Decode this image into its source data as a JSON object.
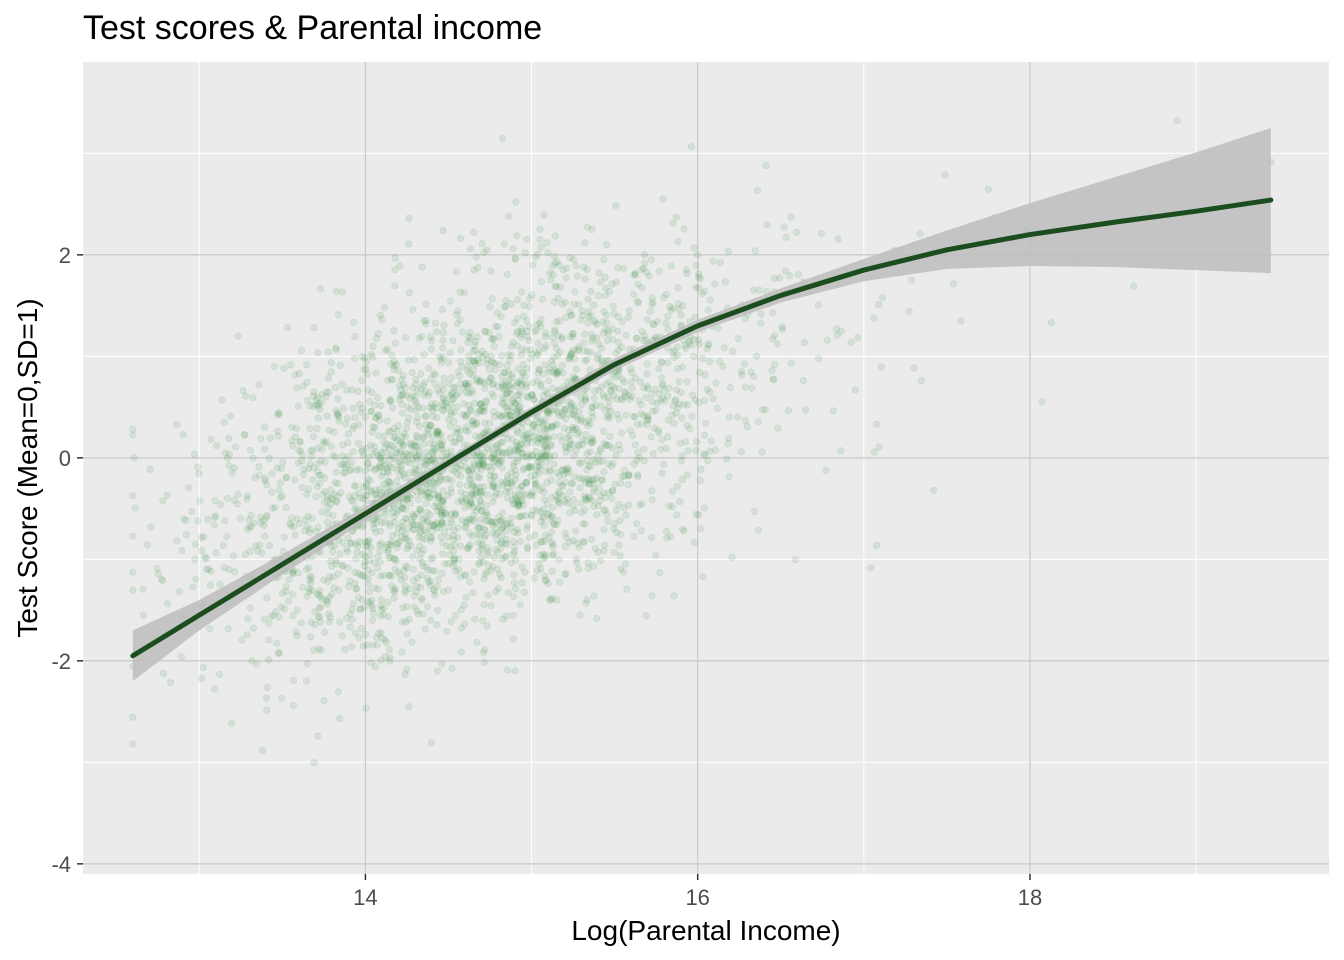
{
  "chart_data": {
    "type": "scatter",
    "title": "Test scores & Parental income",
    "xlabel": "Log(Parental Income)",
    "ylabel": "Test Score (Mean=0,SD=1)",
    "xlim": [
      12.3,
      19.8
    ],
    "ylim": [
      -4.1,
      3.9
    ],
    "x_ticks": [
      14,
      16,
      18
    ],
    "y_ticks": [
      -4,
      -2,
      0,
      2
    ],
    "x_tick_labels": [
      "14",
      "16",
      "18"
    ],
    "y_tick_labels": [
      "-4",
      "-2",
      "0",
      "2"
    ],
    "grid": true,
    "point_color": "#2e8b3a",
    "point_alpha": 0.12,
    "fit_color": "#1b4d1f",
    "band_color": "#bdbdbd",
    "panel_background": "#ebebeb",
    "scatter_summary": {
      "n_points_approx": 3000,
      "x_mean": 14.6,
      "x_sd": 0.75,
      "y_intercept_slope": [
        -8.2,
        0.56
      ],
      "y_residual_sd": 0.8
    },
    "fit_line": {
      "x": [
        12.6,
        13.0,
        13.5,
        14.0,
        14.5,
        15.0,
        15.5,
        16.0,
        16.5,
        17.0,
        17.5,
        18.0,
        18.5,
        19.0,
        19.45
      ],
      "y": [
        -1.95,
        -1.55,
        -1.05,
        -0.55,
        -0.05,
        0.45,
        0.92,
        1.3,
        1.6,
        1.85,
        2.05,
        2.2,
        2.32,
        2.43,
        2.54
      ]
    },
    "confidence_band": {
      "x": [
        12.6,
        13.0,
        13.5,
        14.0,
        14.5,
        15.0,
        15.5,
        16.0,
        16.5,
        17.0,
        17.5,
        18.0,
        18.5,
        19.0,
        19.45
      ],
      "lower": [
        -2.2,
        -1.7,
        -1.15,
        -0.62,
        -0.1,
        0.4,
        0.86,
        1.24,
        1.53,
        1.74,
        1.86,
        1.89,
        1.88,
        1.85,
        1.82
      ],
      "upper": [
        -1.7,
        -1.4,
        -0.95,
        -0.48,
        0.0,
        0.5,
        0.98,
        1.36,
        1.67,
        1.96,
        2.24,
        2.51,
        2.76,
        3.01,
        3.25
      ]
    }
  }
}
